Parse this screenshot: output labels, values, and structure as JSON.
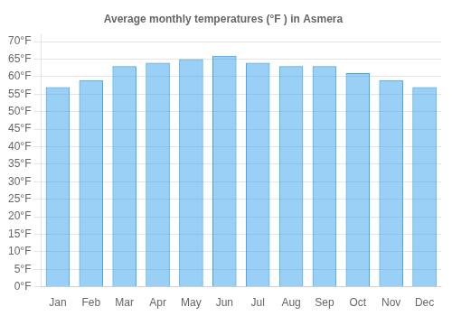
{
  "chart_data": {
    "type": "bar",
    "title": "Average monthly temperatures (°F ) in Asmera",
    "categories": [
      "Jan",
      "Feb",
      "Mar",
      "Apr",
      "May",
      "Jun",
      "Jul",
      "Aug",
      "Sep",
      "Oct",
      "Nov",
      "Dec"
    ],
    "values": [
      57,
      59,
      63,
      64,
      65,
      66,
      64,
      63,
      63,
      61,
      59,
      57
    ],
    "ylim": [
      0,
      72
    ],
    "yticks": [
      {
        "value": 0,
        "label": "0°F"
      },
      {
        "value": 5,
        "label": "5°F"
      },
      {
        "value": 10,
        "label": "10°F"
      },
      {
        "value": 15,
        "label": "15°F"
      },
      {
        "value": 20,
        "label": "20°F"
      },
      {
        "value": 25,
        "label": "25°F"
      },
      {
        "value": 30,
        "label": "30°F"
      },
      {
        "value": 35,
        "label": "35°F"
      },
      {
        "value": 40,
        "label": "40°F"
      },
      {
        "value": 45,
        "label": "45°F"
      },
      {
        "value": 50,
        "label": "50°F"
      },
      {
        "value": 55,
        "label": "55°F"
      },
      {
        "value": 60,
        "label": "60°F"
      },
      {
        "value": 65,
        "label": "65°F"
      },
      {
        "value": 70,
        "label": "70°F"
      }
    ],
    "grid": "y"
  }
}
